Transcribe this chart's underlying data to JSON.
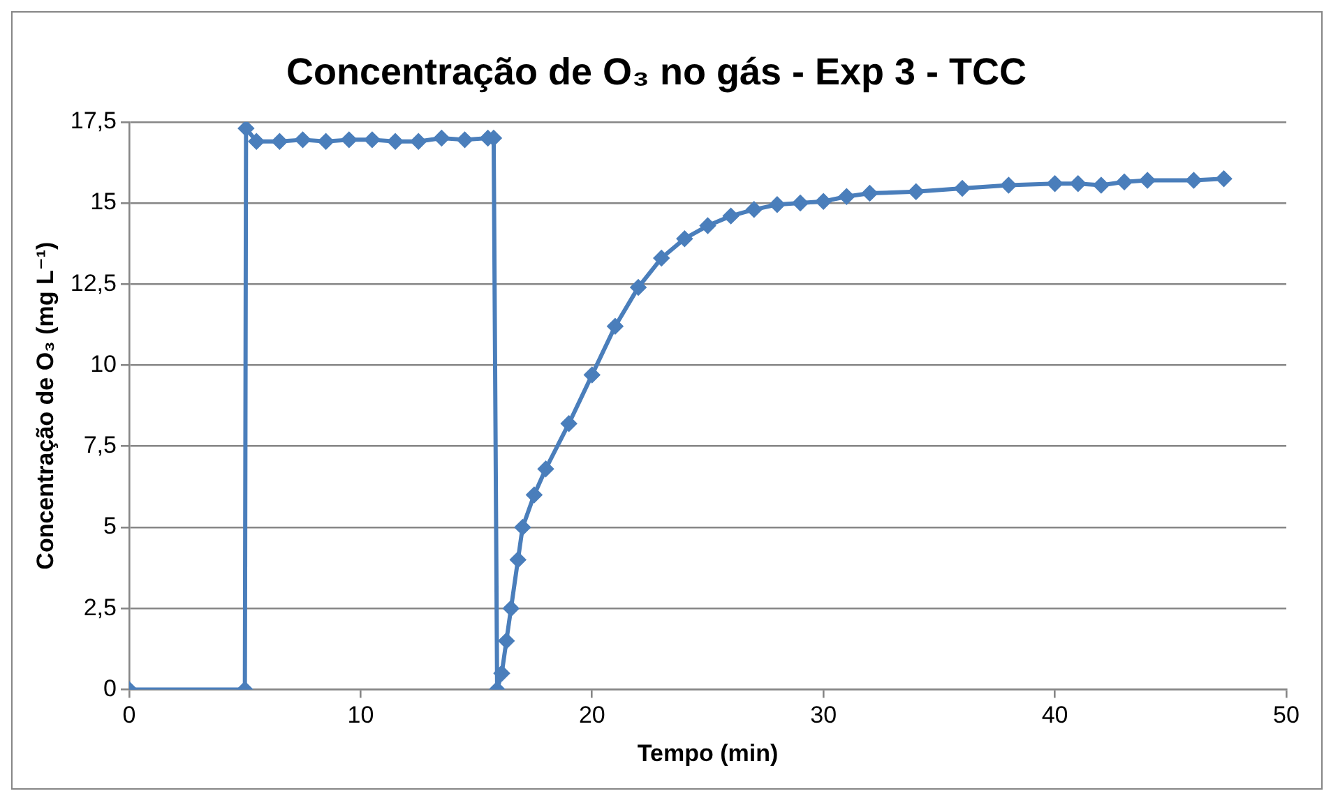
{
  "chart_data": {
    "type": "line",
    "title": "Concentração de O₃ no gás - Exp 3 - TCC",
    "xlabel": "Tempo (min)",
    "ylabel": "Concentração de O₃ (mg L⁻¹)",
    "x": [
      0,
      5,
      5.05,
      5.5,
      6.5,
      7.5,
      8.5,
      9.5,
      10.5,
      11.5,
      12.5,
      13.5,
      14.5,
      15.5,
      15.75,
      15.9,
      16.1,
      16.3,
      16.5,
      16.8,
      17,
      17.5,
      18,
      19,
      20,
      21,
      22,
      23,
      24,
      25,
      26,
      27,
      28,
      29,
      30,
      31,
      32,
      34,
      36,
      38,
      40,
      41,
      42,
      43,
      44,
      46,
      47.3
    ],
    "series": [
      {
        "color": "#4a7ebb",
        "values": [
          0,
          0,
          17.3,
          16.9,
          16.9,
          16.95,
          16.9,
          16.95,
          16.95,
          16.9,
          16.9,
          17.0,
          16.95,
          17.0,
          17.0,
          0,
          0.5,
          1.5,
          2.5,
          4,
          5,
          6,
          6.8,
          8.2,
          9.7,
          11.2,
          12.4,
          13.3,
          13.9,
          14.3,
          14.6,
          14.8,
          14.95,
          15.0,
          15.05,
          15.2,
          15.3,
          15.35,
          15.45,
          15.55,
          15.6,
          15.6,
          15.55,
          15.65,
          15.7,
          15.7,
          15.75
        ]
      }
    ],
    "xlim": [
      0,
      50
    ],
    "xticks": [
      0,
      10,
      20,
      30,
      40,
      50
    ],
    "ylim": [
      0,
      17.5
    ],
    "yticks": [
      0,
      {
        "value": 2.5,
        "label": "2,5"
      },
      5,
      {
        "value": 7.5,
        "label": "7,5"
      },
      10,
      {
        "value": 12.5,
        "label": "12,5"
      },
      15,
      {
        "value": 17.5,
        "label": "17,5"
      }
    ],
    "grid": "y",
    "legend": false,
    "marker": "diamond",
    "line_style": "solid"
  }
}
